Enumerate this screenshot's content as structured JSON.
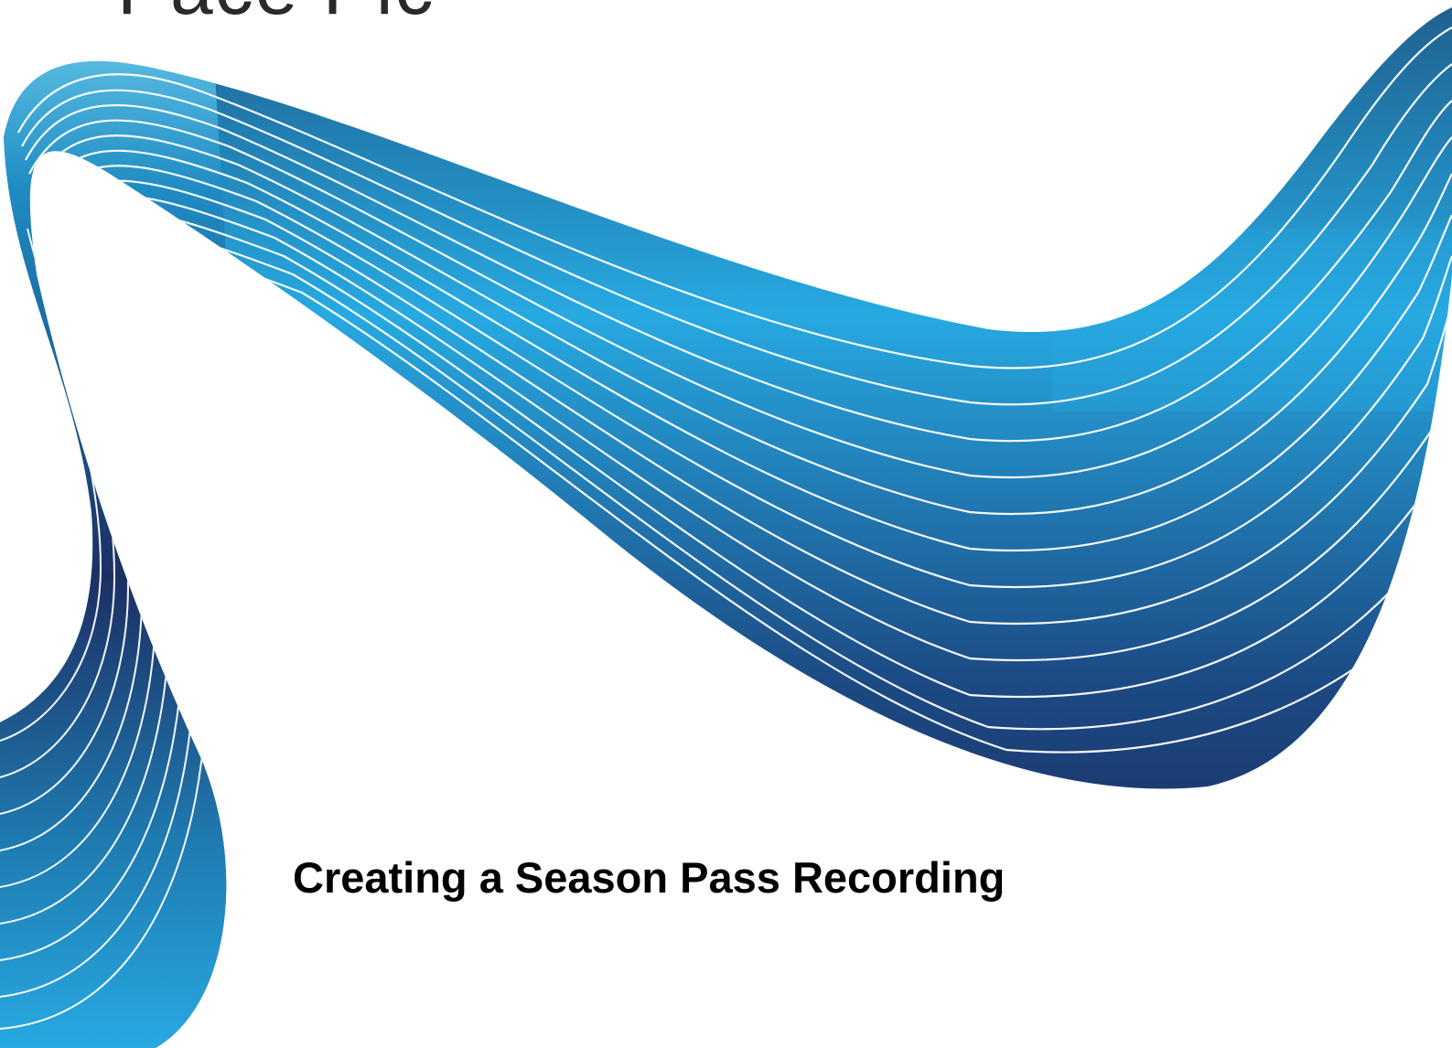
{
  "slide": {
    "top_text": "Pace Plc",
    "title": "Creating a Season Pass Recording"
  },
  "colors": {
    "ribbon_light": "#27a9e1",
    "ribbon_mid": "#1f74a8",
    "ribbon_dark": "#1c2f63",
    "line": "#ffffff"
  }
}
